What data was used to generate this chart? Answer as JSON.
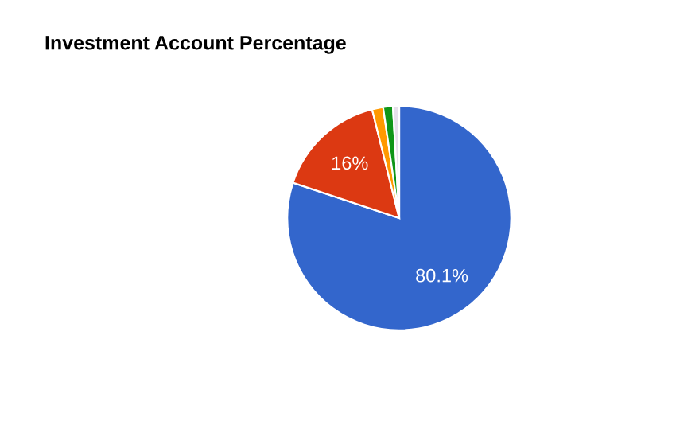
{
  "chart_data": {
    "type": "pie",
    "title": "Investment Account Percentage",
    "categories": [
      null,
      null,
      null,
      null,
      null
    ],
    "values": [
      80.1,
      16,
      1.6,
      1.4,
      0.9
    ],
    "colors": [
      "#3366cc",
      "#dc3912",
      "#ff9900",
      "#109618",
      "#e6e0ea"
    ],
    "value_labels": [
      "80.1%",
      "16%",
      null,
      null,
      null
    ]
  }
}
